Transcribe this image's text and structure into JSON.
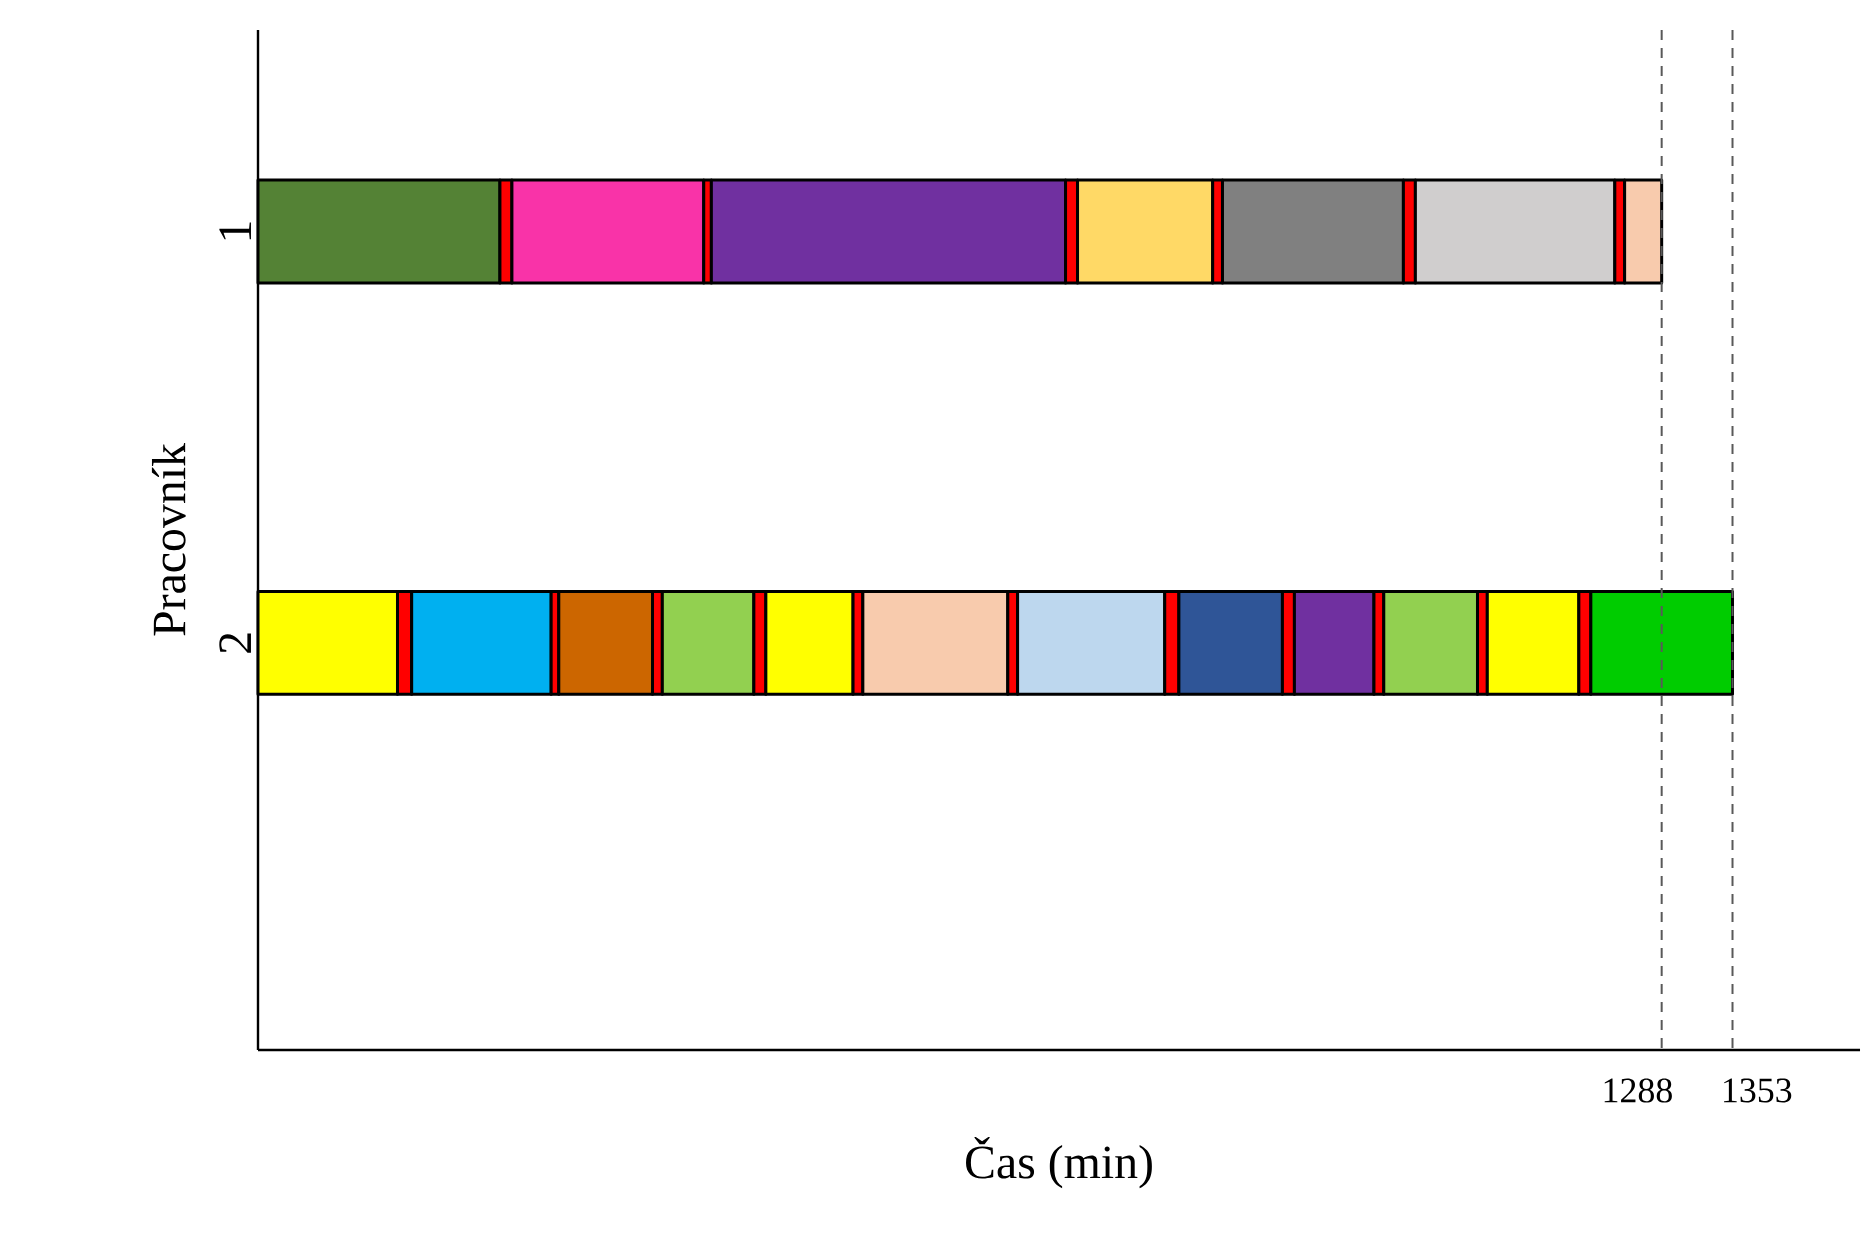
{
  "chart_data": {
    "type": "bar",
    "orientation": "horizontal",
    "stacked": true,
    "categories": [
      "1",
      "2"
    ],
    "xlabel": "Čas (min)",
    "ylabel": "Pracovník",
    "xlim": [
      0,
      1470
    ],
    "tick_labels": "y",
    "series": [
      {
        "values": [
          222,
          128
        ],
        "colors": [
          "#548235",
          "#ffff00"
        ]
      },
      {
        "values": [
          11,
          13
        ],
        "colors": [
          "#ff0000",
          "#ff0000"
        ]
      },
      {
        "values": [
          176,
          128
        ],
        "colors": [
          "#f933a8",
          "#00b0f0"
        ]
      },
      {
        "values": [
          7,
          7
        ],
        "colors": [
          "#ff0000",
          "#ff0000"
        ]
      },
      {
        "values": [
          325,
          86
        ],
        "colors": [
          "#7030a0",
          "#cc6600"
        ]
      },
      {
        "values": [
          11,
          9
        ],
        "colors": [
          "#ff0000",
          "#ff0000"
        ]
      },
      {
        "values": [
          124,
          84
        ],
        "colors": [
          "#ffd966",
          "#92d050"
        ]
      },
      {
        "values": [
          9,
          11
        ],
        "colors": [
          "#ff0000",
          "#ff0000"
        ]
      },
      {
        "values": [
          166,
          80
        ],
        "colors": [
          "#808080",
          "#ffff00"
        ]
      },
      {
        "values": [
          11,
          9
        ],
        "colors": [
          "#ff0000",
          "#ff0000"
        ]
      },
      {
        "values": [
          183,
          133
        ],
        "colors": [
          "#d0cece",
          "#f8cbad"
        ]
      },
      {
        "values": [
          9,
          9
        ],
        "colors": [
          "#ff0000",
          "#ff0000"
        ]
      },
      {
        "values": [
          34,
          135
        ],
        "colors": [
          "#f8cbad",
          "#bdd7ee"
        ]
      },
      {
        "values": [
          null,
          13
        ],
        "colors": [
          null,
          "#ff0000"
        ]
      },
      {
        "values": [
          null,
          95
        ],
        "colors": [
          null,
          "#2f5597"
        ]
      },
      {
        "values": [
          null,
          11
        ],
        "colors": [
          null,
          "#ff0000"
        ]
      },
      {
        "values": [
          null,
          73
        ],
        "colors": [
          null,
          "#7030a0"
        ]
      },
      {
        "values": [
          null,
          9
        ],
        "colors": [
          null,
          "#ff0000"
        ]
      },
      {
        "values": [
          null,
          86
        ],
        "colors": [
          null,
          "#92d050"
        ]
      },
      {
        "values": [
          null,
          9
        ],
        "colors": [
          null,
          "#ff0000"
        ]
      },
      {
        "values": [
          null,
          84
        ],
        "colors": [
          null,
          "#ffff00"
        ]
      },
      {
        "values": [
          null,
          11
        ],
        "colors": [
          null,
          "#ff0000"
        ]
      },
      {
        "values": [
          null,
          130
        ],
        "colors": [
          null,
          "#00cc00"
        ]
      }
    ],
    "ref_lines": [
      {
        "axis": "x",
        "value": 1288,
        "label": "1288",
        "color": "#595959",
        "line_style": "dashed"
      },
      {
        "axis": "x",
        "value": 1353,
        "label": "1353",
        "color": "#595959",
        "line_style": "dashed"
      }
    ]
  }
}
